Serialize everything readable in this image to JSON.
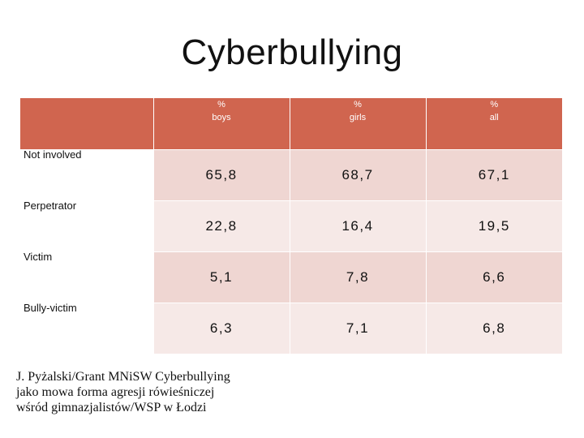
{
  "title": "Cyberbullying",
  "table": {
    "headers": [
      {
        "line1": "",
        "line2": ""
      },
      {
        "line1": "%",
        "line2": "boys"
      },
      {
        "line1": "%",
        "line2": "girls"
      },
      {
        "line1": "%",
        "line2": "all"
      }
    ],
    "rows": [
      {
        "label": "Not involved",
        "boys": "65,8",
        "girls": "68,7",
        "all": "67,1"
      },
      {
        "label": "Perpetrator",
        "boys": "22,8",
        "girls": "16,4",
        "all": "19,5"
      },
      {
        "label": "Victim",
        "boys": "5,1",
        "girls": "7,8",
        "all": "6,6"
      },
      {
        "label": "Bully-victim",
        "boys": "6,3",
        "girls": "7,1",
        "all": "6,8"
      }
    ]
  },
  "source": {
    "line1": "J. Pyżalski/Grant MNiSW Cyberbullying",
    "line2": "jako mowa forma agresji rówieśniczej",
    "line3": "wśród gimnazjalistów/WSP w Łodzi"
  },
  "colors": {
    "header": "#d0654f",
    "row_dark": "#efd6d2",
    "row_light": "#f6e9e7"
  }
}
